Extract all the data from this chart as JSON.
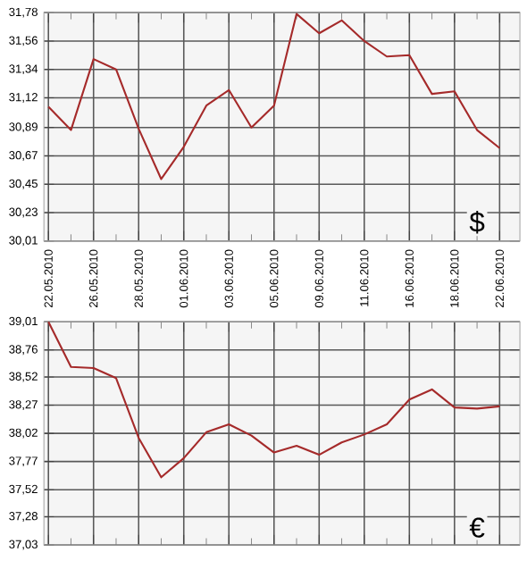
{
  "chart_data": [
    {
      "type": "line",
      "categories": [
        "22.05.2010",
        null,
        "26.05.2010",
        null,
        "28.05.2010",
        null,
        "01.06.2010",
        null,
        "03.06.2010",
        null,
        "05.06.2010",
        null,
        "09.06.2010",
        null,
        "11.06.2010",
        null,
        "16.06.2010",
        null,
        "18.06.2010",
        null,
        "22.06.2010"
      ],
      "series": [
        {
          "color": "#a52a2a",
          "values": [
            31.05,
            30.87,
            31.42,
            31.34,
            30.88,
            30.49,
            30.74,
            31.06,
            31.18,
            30.89,
            31.06,
            31.77,
            31.62,
            31.72,
            31.56,
            31.44,
            31.45,
            31.15,
            31.17,
            30.87,
            30.73
          ]
        }
      ],
      "ylim": [
        30.01,
        31.78
      ],
      "yticks": [
        {
          "value": 30.01,
          "label": "30,01"
        },
        {
          "value": 30.23,
          "label": "30,23"
        },
        {
          "value": 30.45,
          "label": "30,45"
        },
        {
          "value": 30.67,
          "label": "30,67"
        },
        {
          "value": 30.89,
          "label": "30,89"
        },
        {
          "value": 31.12,
          "label": "31,12"
        },
        {
          "value": 31.34,
          "label": "31,34"
        },
        {
          "value": 31.56,
          "label": "31,56"
        },
        {
          "value": 31.78,
          "label": "31,78"
        }
      ],
      "grid": true,
      "annotations": [
        "$"
      ]
    },
    {
      "type": "line",
      "categories": [
        "22.05.2010",
        null,
        "26.05.2010",
        null,
        "28.05.2010",
        null,
        "01.06.2010",
        null,
        "03.06.2010",
        null,
        "05.06.2010",
        null,
        "09.06.2010",
        null,
        "11.06.2010",
        null,
        "16.06.2010",
        null,
        "18.06.2010",
        null,
        "22.06.2010"
      ],
      "series": [
        {
          "color": "#a52a2a",
          "values": [
            39.01,
            38.61,
            38.6,
            38.51,
            37.98,
            37.63,
            37.8,
            38.03,
            38.1,
            38.0,
            37.85,
            37.91,
            37.83,
            37.94,
            38.01,
            38.1,
            38.32,
            38.41,
            38.25,
            38.24,
            38.26
          ]
        }
      ],
      "ylim": [
        37.03,
        39.01
      ],
      "yticks": [
        {
          "value": 37.03,
          "label": "37,03"
        },
        {
          "value": 37.28,
          "label": "37,28"
        },
        {
          "value": 37.52,
          "label": "37,52"
        },
        {
          "value": 37.77,
          "label": "37,77"
        },
        {
          "value": 38.02,
          "label": "38,02"
        },
        {
          "value": 38.27,
          "label": "38,27"
        },
        {
          "value": 38.52,
          "label": "38,52"
        },
        {
          "value": 38.76,
          "label": "38,76"
        },
        {
          "value": 39.01,
          "label": "39,01"
        }
      ],
      "grid": true,
      "tick_labels": "y",
      "annotations": [
        "€"
      ]
    }
  ]
}
